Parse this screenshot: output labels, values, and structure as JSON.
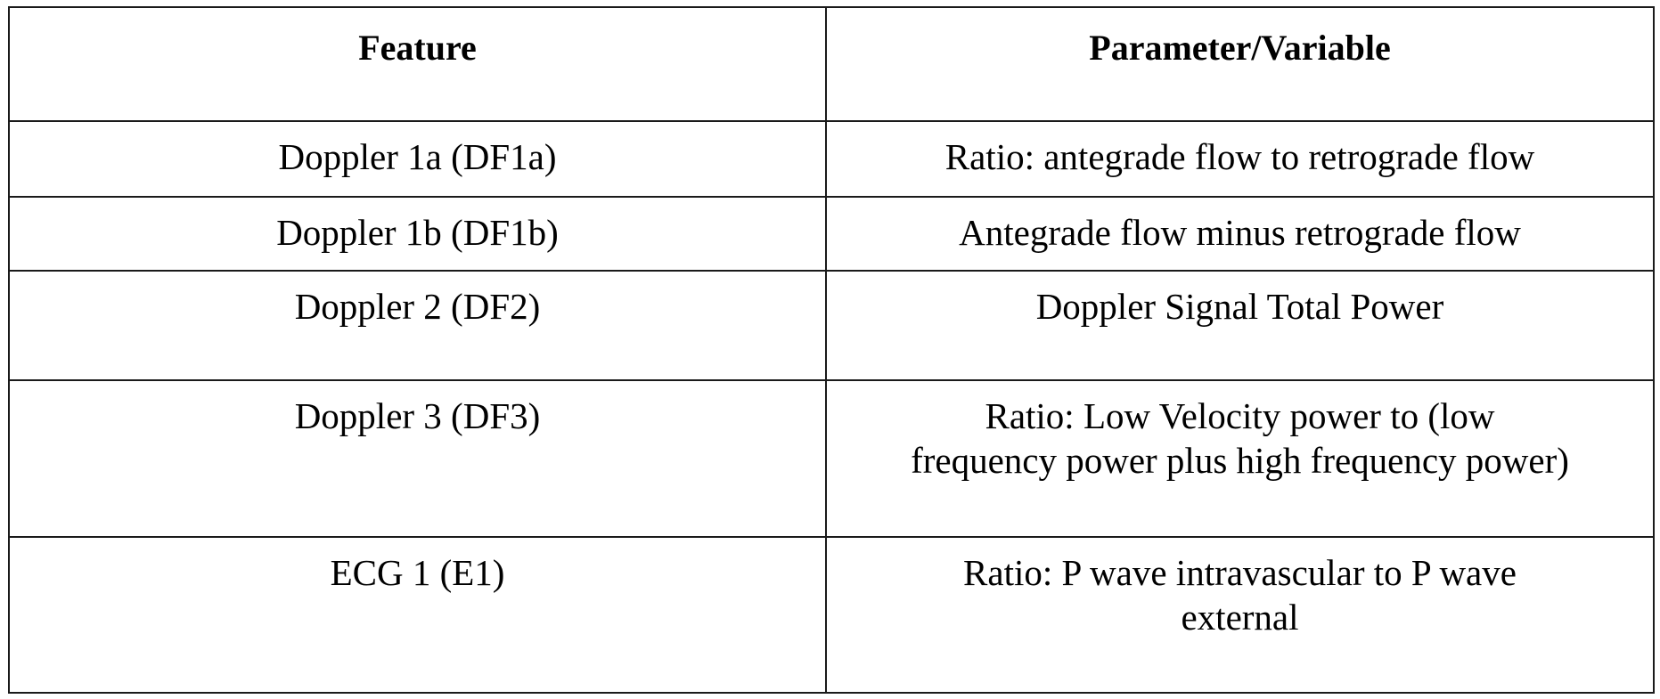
{
  "table": {
    "headers": [
      "Feature",
      "Parameter/Variable"
    ],
    "rows": [
      {
        "feature": "Doppler 1a (DF1a)",
        "parameter": "Ratio: antegrade flow to retrograde flow"
      },
      {
        "feature": "Doppler 1b (DF1b)",
        "parameter": "Antegrade flow minus retrograde flow"
      },
      {
        "feature": "Doppler 2 (DF2)",
        "parameter": "Doppler Signal Total Power"
      },
      {
        "feature": "Doppler 3 (DF3)",
        "parameter": "Ratio:  Low Velocity power to (low frequency power plus high frequency power)"
      },
      {
        "feature": "ECG 1 (E1)",
        "parameter": "Ratio:  P wave intravascular to P wave external"
      }
    ]
  }
}
